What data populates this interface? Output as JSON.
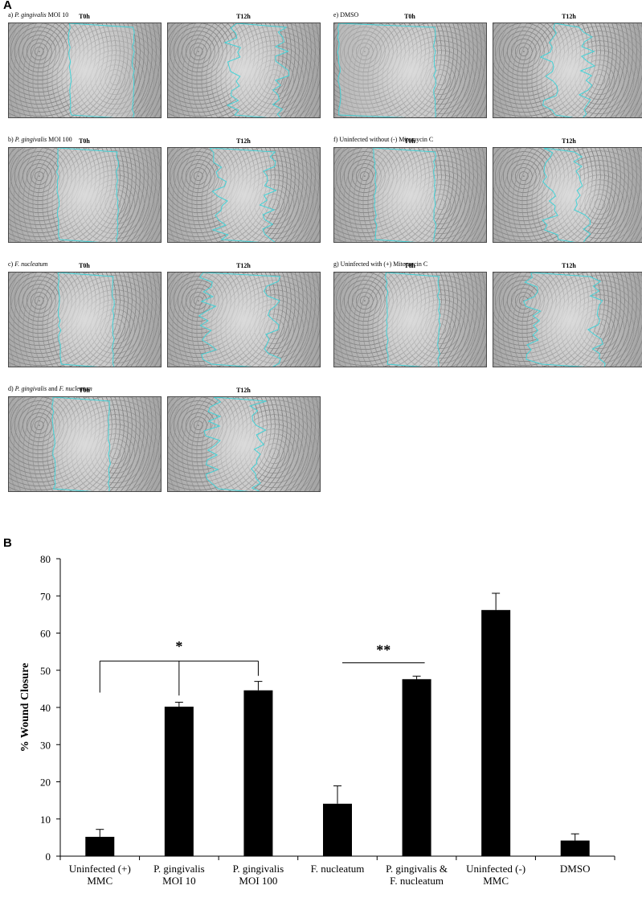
{
  "panel_a": {
    "letter": "A",
    "timepoints": [
      "T0h",
      "T12h"
    ],
    "conditions": [
      {
        "id": "a",
        "label_prefix": "a) ",
        "label_italic": "P. gingivalis",
        "label_suffix": " MOI 10"
      },
      {
        "id": "b",
        "label_prefix": "b) ",
        "label_italic": "P. gingivalis",
        "label_suffix": " MOI 100"
      },
      {
        "id": "c",
        "label_prefix": "c) ",
        "label_italic": "F. nucleatum",
        "label_suffix": ""
      },
      {
        "id": "d",
        "label_prefix": "d) ",
        "label_italic": "P. gingivalis",
        "label_suffix": " and ",
        "label_italic2": "F. nucleatum"
      },
      {
        "id": "e",
        "label_prefix": "e) DMSO",
        "label_italic": "",
        "label_suffix": ""
      },
      {
        "id": "f",
        "label_prefix": "f) Uninfected without (-) Mitomycin  C",
        "label_italic": "",
        "label_suffix": ""
      },
      {
        "id": "g",
        "label_prefix": "g) Uninfected with (+) Mitomycin C",
        "label_italic": "",
        "label_suffix": ""
      }
    ],
    "outline_color": "#45d3d8"
  },
  "panel_b": {
    "letter": "B"
  },
  "chart_data": {
    "type": "bar",
    "title": "",
    "ylabel": "% Wound Closure",
    "xlabel": "",
    "ylim": [
      0,
      80
    ],
    "yticks": [
      0,
      10,
      20,
      30,
      40,
      50,
      60,
      70,
      80
    ],
    "categories": [
      [
        "Uninfected (+)",
        "MMC"
      ],
      [
        "P. gingivalis",
        "MOI 10"
      ],
      [
        "P. gingivalis",
        "MOI 100"
      ],
      [
        "F. nucleatum",
        ""
      ],
      [
        "P. gingivalis &",
        "F. nucleatum"
      ],
      [
        "Uninfected (-)",
        "MMC"
      ],
      [
        "DMSO",
        ""
      ]
    ],
    "values": [
      5.2,
      40.2,
      44.6,
      14.1,
      47.6,
      66.2,
      4.2
    ],
    "errors": [
      2.0,
      1.2,
      2.4,
      4.8,
      0.8,
      4.5,
      1.8
    ],
    "bar_color": "#000000",
    "significance": [
      {
        "label": "*",
        "groups": [
          0,
          1,
          2
        ]
      },
      {
        "label": "**",
        "groups": [
          3,
          4
        ]
      }
    ]
  }
}
